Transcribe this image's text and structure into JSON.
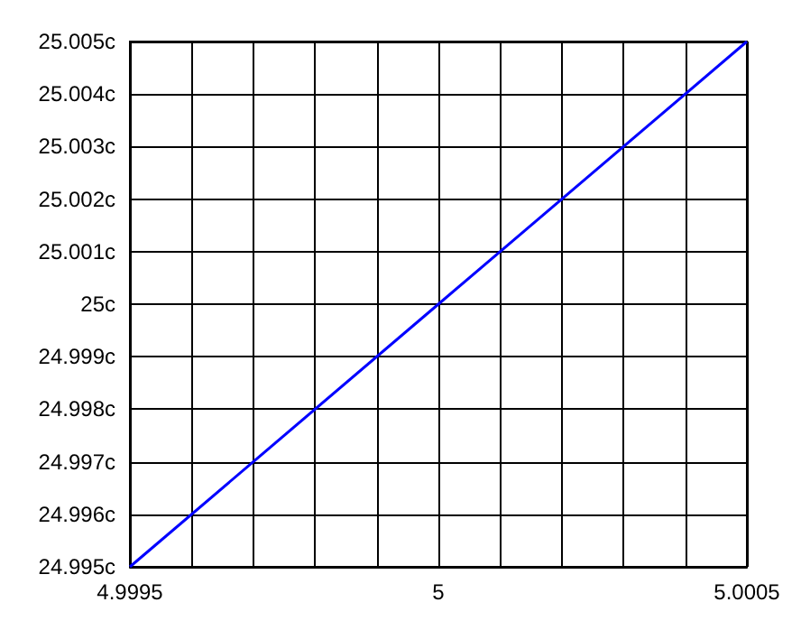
{
  "chart_data": {
    "type": "line",
    "x": [
      4.9995,
      5,
      5.0005
    ],
    "series": [
      {
        "color": "#0000ff",
        "values": [
          24.995,
          25,
          25.005
        ]
      }
    ],
    "xlim": [
      4.9995,
      5.0005
    ],
    "xticks": [
      4.9995,
      {
        "value": 4.9996,
        "label": null
      },
      {
        "value": 4.9997,
        "label": null
      },
      {
        "value": 4.9998,
        "label": null
      },
      {
        "value": 4.9999,
        "label": null
      },
      5,
      {
        "value": 5.0001,
        "label": null
      },
      {
        "value": 5.0002,
        "label": null
      },
      {
        "value": 5.0003,
        "label": null
      },
      {
        "value": 5.0004,
        "label": null
      },
      5.0005
    ],
    "ylim": [
      24.995,
      25.005
    ],
    "yticks": [
      {
        "value": 24.995,
        "label": "24.995c"
      },
      {
        "value": 24.996,
        "label": "24.996c"
      },
      {
        "value": 24.997,
        "label": "24.997c"
      },
      {
        "value": 24.998,
        "label": "24.998c"
      },
      {
        "value": 24.999,
        "label": "24.999c"
      },
      {
        "value": 25,
        "label": "25c"
      },
      {
        "value": 25.001,
        "label": "25.001c"
      },
      {
        "value": 25.002,
        "label": "25.002c"
      },
      {
        "value": 25.003,
        "label": "25.003c"
      },
      {
        "value": 25.004,
        "label": "25.004c"
      },
      {
        "value": 25.005,
        "label": "25.005c"
      }
    ],
    "grid": true,
    "marker": "none",
    "line_style": "solid"
  }
}
